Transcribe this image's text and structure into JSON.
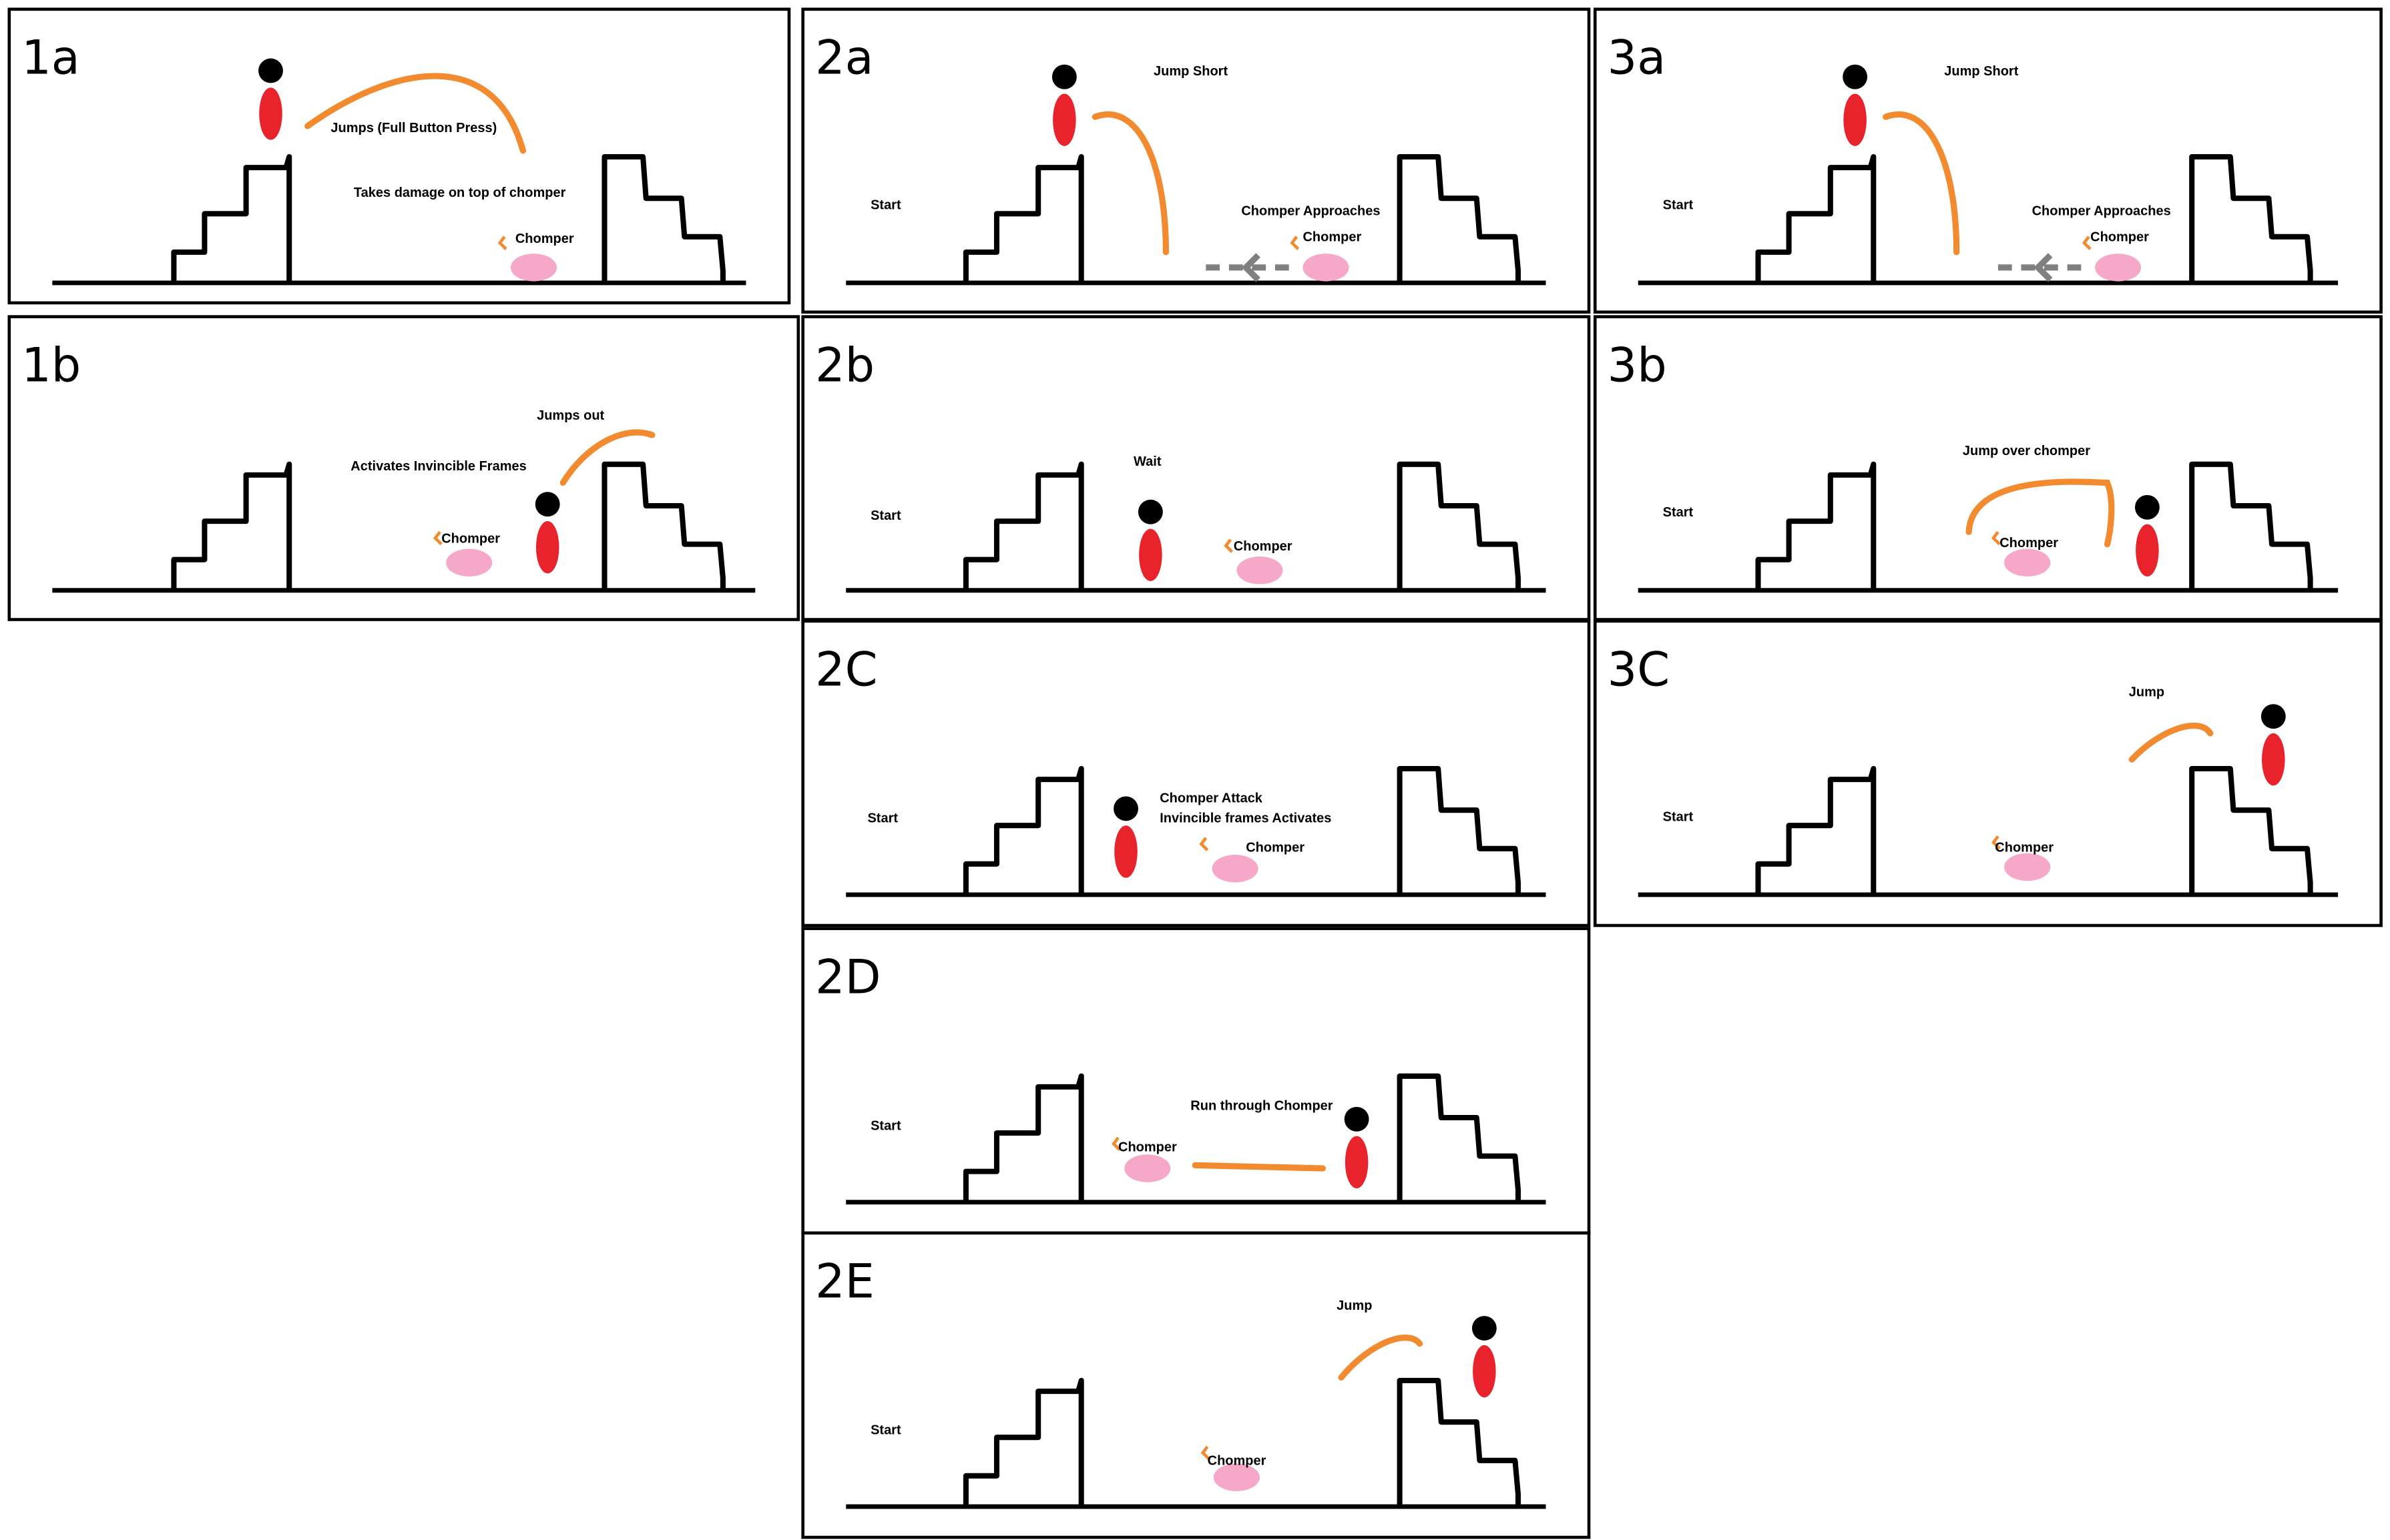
{
  "colors": {
    "ink": "#000000",
    "player_body": "#e8232b",
    "player_head": "#000000",
    "jump_arc": "#f28a30",
    "chomper": "#f5a8c8",
    "chomper_mark": "#f28a30",
    "arrow": "#808080"
  },
  "panels": [
    {
      "id": "1a",
      "label": "1a",
      "texts": [
        {
          "key": "action",
          "value": "Jumps (Full Button Press)"
        },
        {
          "key": "note",
          "value": "Takes damage on top of chomper"
        },
        {
          "key": "chomper",
          "value": "Chomper"
        }
      ],
      "player_position": "on top of first staircase",
      "jump": "full arc toward the chomper",
      "chomper_position": "middle floor"
    },
    {
      "id": "2a",
      "label": "2a",
      "texts": [
        {
          "key": "start",
          "value": "Start"
        },
        {
          "key": "action",
          "value": "Jump Short"
        },
        {
          "key": "note",
          "value": "Chomper Approaches"
        },
        {
          "key": "chomper",
          "value": "Chomper"
        }
      ],
      "player_position": "on top of first staircase",
      "jump": "short arc",
      "chomper_position": "right floor, moving left"
    },
    {
      "id": "3a",
      "label": "3a",
      "texts": [
        {
          "key": "start",
          "value": "Start"
        },
        {
          "key": "action",
          "value": "Jump Short"
        },
        {
          "key": "note",
          "value": "Chomper Approaches"
        },
        {
          "key": "chomper",
          "value": "Chomper"
        }
      ],
      "player_position": "on top of first staircase",
      "jump": "short arc",
      "chomper_position": "right floor, moving left"
    },
    {
      "id": "1b",
      "label": "1b",
      "texts": [
        {
          "key": "action",
          "value": "Jumps out"
        },
        {
          "key": "note",
          "value": "Activates Invincible Frames"
        },
        {
          "key": "chomper",
          "value": "Chomper"
        }
      ],
      "player_position": "floor next to second staircase",
      "jump": "arc onto second staircase",
      "chomper_position": "middle floor"
    },
    {
      "id": "2b",
      "label": "2b",
      "texts": [
        {
          "key": "start",
          "value": "Start"
        },
        {
          "key": "action",
          "value": "Wait"
        },
        {
          "key": "chomper",
          "value": "Chomper"
        }
      ],
      "player_position": "floor next to first staircase",
      "jump": "none",
      "chomper_position": "middle floor"
    },
    {
      "id": "3b",
      "label": "3b",
      "texts": [
        {
          "key": "start",
          "value": "Start"
        },
        {
          "key": "action",
          "value": "Jump over chomper"
        },
        {
          "key": "chomper",
          "value": "Chomper"
        }
      ],
      "player_position": "floor past the chomper",
      "jump": "flat arc over the chomper",
      "chomper_position": "middle floor"
    },
    {
      "id": "2c",
      "label": "2C",
      "texts": [
        {
          "key": "start",
          "value": "Start"
        },
        {
          "key": "action",
          "value": "Chomper Attack"
        },
        {
          "key": "note",
          "value": "Invincible frames Activates"
        },
        {
          "key": "chomper",
          "value": "Chomper"
        }
      ],
      "player_position": "floor next to first staircase",
      "jump": "none",
      "chomper_position": "middle floor"
    },
    {
      "id": "3c",
      "label": "3C",
      "texts": [
        {
          "key": "start",
          "value": "Start"
        },
        {
          "key": "action",
          "value": "Jump"
        },
        {
          "key": "chomper",
          "value": "Chomper"
        }
      ],
      "player_position": "on top of second staircase",
      "jump": "arc onto second staircase",
      "chomper_position": "middle floor"
    },
    {
      "id": "2d",
      "label": "2D",
      "texts": [
        {
          "key": "start",
          "value": "Start"
        },
        {
          "key": "action",
          "value": "Run through Chomper"
        },
        {
          "key": "chomper",
          "value": "Chomper"
        }
      ],
      "player_position": "floor next to second staircase",
      "jump": "run line through the chomper",
      "chomper_position": "left floor"
    },
    {
      "id": "2e",
      "label": "2E",
      "texts": [
        {
          "key": "start",
          "value": "Start"
        },
        {
          "key": "action",
          "value": "Jump"
        },
        {
          "key": "chomper",
          "value": "Chomper"
        }
      ],
      "player_position": "on top of second staircase",
      "jump": "arc onto second staircase",
      "chomper_position": "middle floor"
    }
  ]
}
